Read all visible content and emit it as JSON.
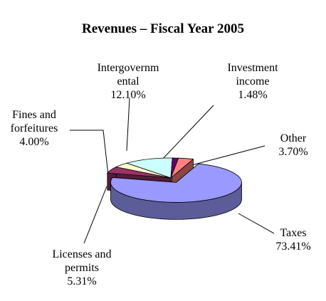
{
  "chart_data": {
    "type": "pie3d",
    "title": "Revenues – Fiscal Year 2005",
    "categories": [
      "Taxes",
      "Licenses and permits",
      "Fines and forfeitures",
      "Intergovernmental",
      "Investment income",
      "Other"
    ],
    "values": [
      73.41,
      5.31,
      4.0,
      12.1,
      1.48,
      3.7
    ],
    "value_labels": [
      "73.41%",
      "5.31%",
      "4.00%",
      "12.10%",
      "1.48%",
      "3.70%"
    ],
    "colors": [
      "#9999ff",
      "#993366",
      "#ffffcc",
      "#ccffff",
      "#660066",
      "#ff8080"
    ]
  }
}
